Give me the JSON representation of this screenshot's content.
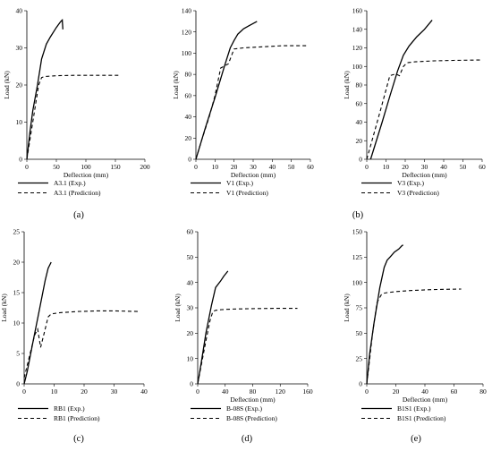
{
  "chart_data": [
    {
      "type": "line",
      "panel_label": "(a)",
      "xlabel": "Deflection (mm)",
      "ylabel": "Load (kN)",
      "xlim": [
        0,
        200
      ],
      "ylim": [
        0,
        40
      ],
      "xticks": [
        0,
        50,
        100,
        150,
        200
      ],
      "yticks": [
        0,
        10,
        20,
        30,
        40
      ],
      "legend_position": "bottom",
      "series": [
        {
          "name": "A3.1 (Exp.)",
          "style": "solid",
          "x": [
            0,
            5,
            10,
            18,
            25,
            33,
            40,
            50,
            57,
            60,
            61
          ],
          "y": [
            0,
            7,
            13,
            20,
            27,
            31,
            33,
            35.5,
            37,
            37.5,
            35
          ]
        },
        {
          "name": "A3.1 (Prediction)",
          "style": "dashed",
          "x": [
            0,
            5,
            10,
            15,
            20,
            25,
            30,
            50,
            80,
            110,
            155
          ],
          "y": [
            0,
            5,
            10,
            15,
            20,
            22,
            22.3,
            22.5,
            22.6,
            22.6,
            22.6
          ]
        }
      ]
    },
    {
      "type": "line",
      "panel_label": "",
      "xlabel": "Deflection (mm)",
      "ylabel": "Load (kN)",
      "xlim": [
        0,
        60
      ],
      "ylim": [
        0,
        140
      ],
      "xticks": [
        0,
        10,
        20,
        30,
        40,
        50,
        60
      ],
      "yticks": [
        0,
        20,
        40,
        60,
        80,
        100,
        120,
        140
      ],
      "legend_position": "bottom",
      "series": [
        {
          "name": "V1 (Exp.)",
          "style": "solid",
          "x": [
            0,
            5,
            10,
            15,
            18,
            20,
            22,
            25,
            28,
            32
          ],
          "y": [
            0,
            30,
            58,
            88,
            105,
            112,
            118,
            123,
            126,
            130
          ]
        },
        {
          "name": "V1 (Prediction)",
          "style": "dashed",
          "x": [
            0,
            3,
            7,
            10,
            13,
            15,
            17,
            20,
            25,
            35,
            45,
            58
          ],
          "y": [
            0,
            18,
            40,
            60,
            86,
            88,
            90,
            104,
            105,
            106,
            107,
            107
          ]
        }
      ]
    },
    {
      "type": "line",
      "panel_label": "(b)",
      "xlabel": "Deflection (mm)",
      "ylabel": "Load (kN)",
      "xlim": [
        0,
        60
      ],
      "ylim": [
        0,
        160
      ],
      "xticks": [
        0,
        10,
        20,
        30,
        40,
        50,
        60
      ],
      "yticks": [
        0,
        20,
        40,
        60,
        80,
        100,
        120,
        140,
        160
      ],
      "legend_position": "bottom",
      "series": [
        {
          "name": "V3 (Exp.)",
          "style": "solid",
          "x": [
            2,
            8,
            12,
            16,
            19,
            22,
            26,
            30,
            34
          ],
          "y": [
            0,
            40,
            68,
            95,
            112,
            122,
            132,
            140,
            150
          ]
        },
        {
          "name": "V3 (Prediction)",
          "style": "dashed",
          "x": [
            0,
            3,
            7,
            12,
            15,
            17,
            19,
            21,
            25,
            35,
            45,
            60
          ],
          "y": [
            0,
            22,
            52,
            90,
            92,
            90,
            100,
            104,
            105,
            106,
            106.5,
            107
          ]
        }
      ]
    },
    {
      "type": "line",
      "panel_label": "(c)",
      "xlabel": "",
      "ylabel": "Load (kN)",
      "xlim": [
        0,
        40
      ],
      "ylim": [
        0,
        25
      ],
      "xticks": [
        0,
        10,
        20,
        30,
        40
      ],
      "yticks": [
        0,
        5,
        10,
        15,
        20,
        25
      ],
      "legend_position": "bottom",
      "series": [
        {
          "name": "RB1 (Exp.)",
          "style": "solid",
          "x": [
            0,
            1,
            3,
            5,
            7,
            8,
            9
          ],
          "y": [
            0,
            2,
            7,
            12,
            17,
            19,
            20
          ]
        },
        {
          "name": "RB1 (Prediction)",
          "style": "dashed",
          "x": [
            0,
            2,
            3.5,
            4.5,
            5.5,
            7,
            8,
            9,
            12,
            18,
            25,
            30,
            38
          ],
          "y": [
            1,
            5,
            8,
            9,
            6,
            9,
            11,
            11.5,
            11.7,
            11.9,
            12,
            12,
            11.9
          ]
        }
      ]
    },
    {
      "type": "line",
      "panel_label": "(d)",
      "xlabel": "Deflection (mm)",
      "ylabel": "Load (kN)",
      "xlim": [
        0,
        160
      ],
      "ylim": [
        0,
        60
      ],
      "xticks": [
        0,
        40,
        80,
        120,
        160
      ],
      "yticks": [
        0,
        10,
        20,
        30,
        40,
        50,
        60
      ],
      "legend_position": "bottom",
      "series": [
        {
          "name": "B-08S (Exp.)",
          "style": "solid",
          "x": [
            0,
            5,
            12,
            20,
            26,
            33,
            38,
            44
          ],
          "y": [
            0,
            8,
            20,
            31,
            38,
            40.5,
            42.5,
            44.5
          ]
        },
        {
          "name": "B-08S (Prediction)",
          "style": "dashed",
          "x": [
            0,
            5,
            12,
            18,
            22,
            26,
            35,
            50,
            80,
            110,
            145
          ],
          "y": [
            0,
            7,
            17,
            25,
            28.5,
            29,
            29.3,
            29.5,
            29.7,
            29.8,
            29.8
          ]
        }
      ]
    },
    {
      "type": "line",
      "panel_label": "(e)",
      "xlabel": "Deflection (mm)",
      "ylabel": "Load (kN)",
      "xlim": [
        0,
        80
      ],
      "ylim": [
        0,
        150
      ],
      "xticks": [
        0,
        20,
        40,
        60,
        80
      ],
      "yticks": [
        0,
        25,
        50,
        75,
        100,
        125,
        150
      ],
      "legend_position": "bottom",
      "series": [
        {
          "name": "B1S1 (Exp.)",
          "style": "solid",
          "x": [
            0,
            2,
            5,
            9,
            12,
            14,
            16,
            19,
            22,
            24,
            25
          ],
          "y": [
            0,
            30,
            60,
            95,
            115,
            122,
            125,
            130,
            133,
            136,
            137
          ]
        },
        {
          "name": "B1S1 (Prediction)",
          "style": "dashed",
          "x": [
            0,
            2,
            4,
            7,
            10,
            12,
            14,
            20,
            30,
            45,
            65
          ],
          "y": [
            0,
            25,
            50,
            80,
            88,
            89.5,
            90,
            91,
            92,
            93,
            93.5
          ]
        }
      ]
    }
  ]
}
